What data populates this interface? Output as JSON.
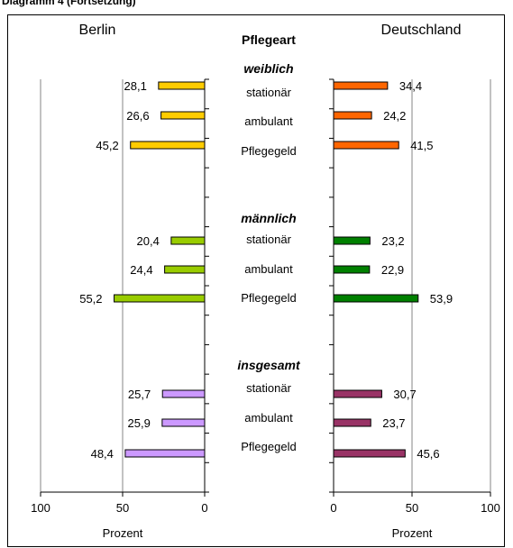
{
  "header_fragment": "Diagramm 4 (Fortsetzung)",
  "chart_data": {
    "type": "bar",
    "orientation": "horizontal-butterfly",
    "center_title": "Pflegeart",
    "left_panel": {
      "title": "Berlin",
      "xlabel": "Prozent",
      "xlim": [
        100,
        0
      ],
      "ticks": [
        "100",
        "50",
        "0"
      ],
      "grid_at": [
        100,
        50
      ]
    },
    "right_panel": {
      "title": "Deutschland",
      "xlabel": "Prozent",
      "xlim": [
        0,
        100
      ],
      "ticks": [
        "0",
        "50",
        "100"
      ],
      "grid_at": [
        50,
        100
      ]
    },
    "groups": [
      {
        "label": "weiblich",
        "categories": [
          "stationär",
          "ambulant",
          "Pflegegeld"
        ],
        "berlin": [
          28.1,
          26.6,
          45.2
        ],
        "berlin_labels": [
          "28,1",
          "26,6",
          "45,2"
        ],
        "deutschland": [
          34.4,
          24.2,
          41.5
        ],
        "deutschland_labels": [
          "34,4",
          "24,2",
          "41,5"
        ],
        "berlin_color": "#FFCC00",
        "deutschland_color": "#FF6600"
      },
      {
        "label": "männlich",
        "categories": [
          "stationär",
          "ambulant",
          "Pflegegeld"
        ],
        "berlin": [
          20.4,
          24.4,
          55.2
        ],
        "berlin_labels": [
          "20,4",
          "24,4",
          "55,2"
        ],
        "deutschland": [
          23.2,
          22.9,
          53.9
        ],
        "deutschland_labels": [
          "23,2",
          "22,9",
          "53,9"
        ],
        "berlin_color": "#99CC00",
        "deutschland_color": "#008000"
      },
      {
        "label": "insgesamt",
        "categories": [
          "stationär",
          "ambulant",
          "Pflegegeld"
        ],
        "berlin": [
          25.7,
          25.9,
          48.4
        ],
        "berlin_labels": [
          "25,7",
          "25,9",
          "48,4"
        ],
        "deutschland": [
          30.7,
          23.7,
          45.6
        ],
        "deutschland_labels": [
          "30,7",
          "23,7",
          "45,6"
        ],
        "berlin_color": "#CC99FF",
        "deutschland_color": "#993366"
      }
    ]
  }
}
